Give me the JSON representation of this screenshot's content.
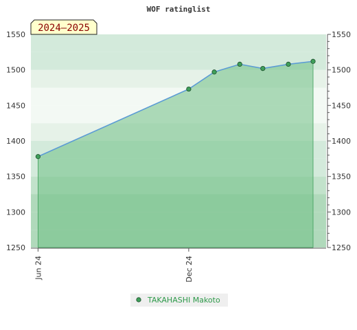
{
  "chart_data": {
    "type": "area",
    "title": "WOF ratinglist",
    "season_label": "2024–2025",
    "xlabel": "",
    "ylabel": "",
    "x_tick_labels": [
      {
        "label": "Jun 24",
        "date": "2024-06-01"
      },
      {
        "label": "Dec 24",
        "date": "2024-12-01"
      }
    ],
    "xlim": [
      "2024-05-25",
      "2025-05-01"
    ],
    "ylim": [
      1250,
      1550
    ],
    "y_ticks": [
      1250,
      1300,
      1350,
      1400,
      1450,
      1500,
      1550
    ],
    "y_minor_step": 10,
    "grid": true,
    "legend_position": "bottom-center",
    "series": [
      {
        "name": "TAKAHASHI Makoto",
        "points": [
          {
            "x": "2024-06-01",
            "y": 1378
          },
          {
            "x": "2024-12-01",
            "y": 1473
          },
          {
            "x": "2025-01-01",
            "y": 1497
          },
          {
            "x": "2025-02-01",
            "y": 1508
          },
          {
            "x": "2025-03-01",
            "y": 1502
          },
          {
            "x": "2025-04-01",
            "y": 1508
          },
          {
            "x": "2025-05-01",
            "y": 1512
          }
        ]
      }
    ],
    "colors": {
      "line": "#5b9bd5",
      "fill": "#6fbf85",
      "marker": "#3f9f5a",
      "legend_text": "#2e9a4a",
      "season_label_bg": "#ffffcc",
      "season_label_text": "#8b0000"
    }
  }
}
